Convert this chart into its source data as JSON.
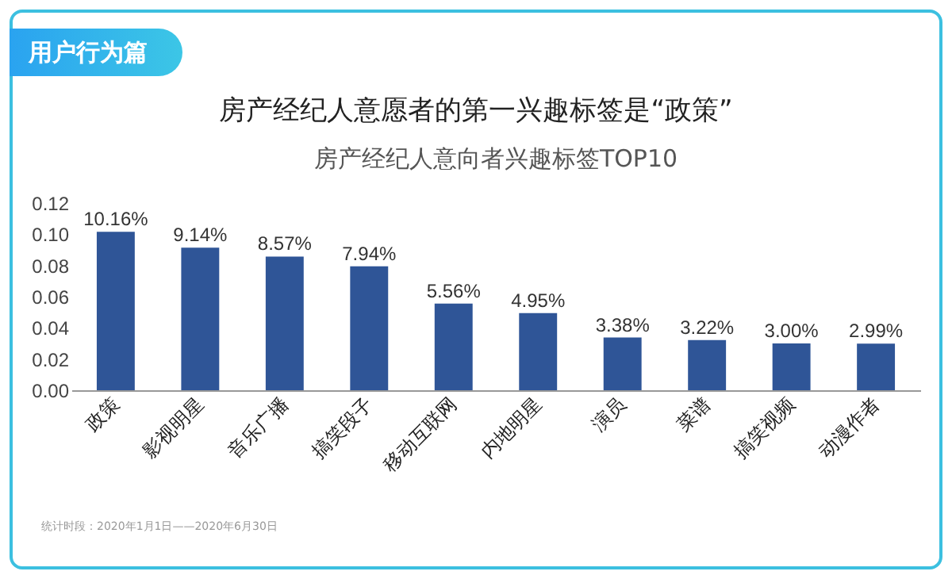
{
  "chart_data": {
    "type": "bar",
    "title": "房产经纪人意愿者的第一兴趣标签是“政策”",
    "subtitle": "房产经纪人意向者兴趣标签TOP10",
    "annotations": [
      "用户行为篇",
      "统计时段：2020年1月1日——2020年6月30日"
    ],
    "categories": [
      "政策",
      "影视明星",
      "音乐广播",
      "搞笑段子",
      "移动互联网",
      "内地明星",
      "演员",
      "菜谱",
      "搞笑视频",
      "动漫作者"
    ],
    "values": [
      0.1016,
      0.0914,
      0.0857,
      0.0794,
      0.0556,
      0.0495,
      0.0338,
      0.0322,
      0.03,
      0.0299
    ],
    "value_labels": [
      "10.16%",
      "9.14%",
      "8.57%",
      "7.94%",
      "5.56%",
      "4.95%",
      "3.38%",
      "3.22%",
      "3.00%",
      "2.99%"
    ],
    "color": "#2f5597",
    "ylim": [
      0,
      0.12
    ],
    "yticks": [
      {
        "value": 0,
        "label": "0.00"
      },
      {
        "value": 0.02,
        "label": "0.02"
      },
      {
        "value": 0.04,
        "label": "0.04"
      },
      {
        "value": 0.06,
        "label": "0.06"
      },
      {
        "value": 0.08,
        "label": "0.08"
      },
      {
        "value": 0.1,
        "label": "0.10"
      },
      {
        "value": 0.12,
        "label": "0.12"
      }
    ],
    "grid": false
  }
}
